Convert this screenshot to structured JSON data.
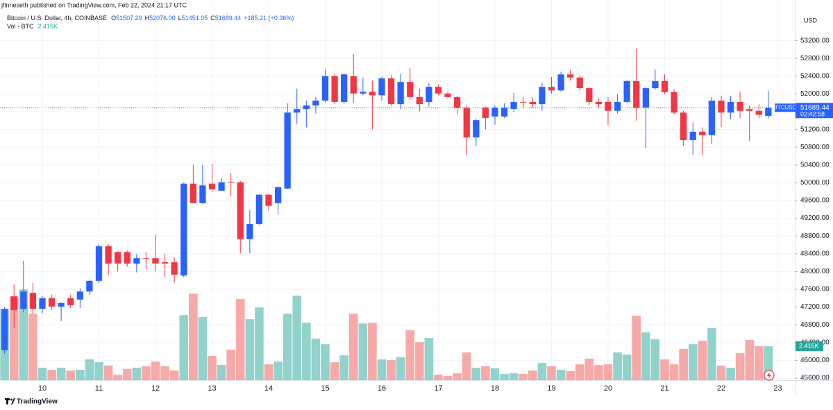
{
  "chart_data": {
    "type": "candlestick",
    "published": "jfinneseth published on TradingView.com, Feb 22, 2024 21:17 UTC",
    "legend": {
      "symbol": "Bitcoin / U.S. Dollar, 4h, COINBASE",
      "items": [
        {
          "key": "O",
          "value": "51507.29"
        },
        {
          "key": "H",
          "value": "52076.00"
        },
        {
          "key": "L",
          "value": "51451.05"
        },
        {
          "key": "C",
          "value": "51689.44"
        }
      ],
      "change": "+185.21 (+0.36%)"
    },
    "volume_legend": "Vol · BTC",
    "volume_label": "2.416K",
    "currency": "USD",
    "last_price": {
      "symbol": "BTCUSD",
      "value": 51689.44,
      "countdown": "02:42:58"
    },
    "brand": "TradingView",
    "up_color": "#2962ff",
    "down_color": "#f23645",
    "volume_up_color": "#92d2cc",
    "volume_down_color": "#f7a9a7",
    "grid": true,
    "x": [
      9.333,
      9.5,
      9.667,
      9.833,
      10,
      10.167,
      10.333,
      10.5,
      10.667,
      10.833,
      11,
      11.167,
      11.333,
      11.5,
      11.667,
      11.833,
      12,
      12.167,
      12.333,
      12.5,
      12.667,
      12.833,
      13,
      13.167,
      13.333,
      13.5,
      13.667,
      13.833,
      14,
      14.167,
      14.333,
      14.5,
      14.667,
      14.833,
      15,
      15.167,
      15.333,
      15.5,
      15.667,
      15.833,
      16,
      16.167,
      16.333,
      16.5,
      16.667,
      16.833,
      17,
      17.167,
      17.333,
      17.5,
      17.667,
      17.833,
      18,
      18.167,
      18.333,
      18.5,
      18.667,
      18.833,
      19,
      19.167,
      19.333,
      19.5,
      19.667,
      19.833,
      20,
      20.167,
      20.333,
      20.5,
      20.667,
      20.833,
      21,
      21.167,
      21.333,
      21.5,
      21.667,
      21.833,
      22,
      22.167,
      22.333,
      22.5,
      22.667,
      22.833
    ],
    "open": [
      46230,
      47440,
      47160,
      47520,
      47160,
      47400,
      47210,
      47400,
      47370,
      47550,
      47790,
      48570,
      48440,
      48440,
      48180,
      48300,
      48300,
      48210,
      48210,
      47910,
      49980,
      49540,
      49980,
      49820,
      50010,
      50010,
      48730,
      49070,
      49730,
      49540,
      49870,
      51580,
      51660,
      51740,
      51850,
      52400,
      51820,
      52400,
      52010,
      52050,
      51970,
      52350,
      51770,
      52270,
      51930,
      51820,
      52160,
      52010,
      51930,
      51690,
      51020,
      51690,
      51490,
      51490,
      51660,
      51820,
      51820,
      51770,
      52160,
      52080,
      52440,
      52370,
      52130,
      51820,
      51820,
      51620,
      51820,
      52290,
      51690,
      52130,
      52290,
      52040,
      51580,
      50960,
      51150,
      51070,
      51850,
      51580,
      51820,
      51660,
      51620,
      51507.29
    ],
    "high": [
      47200,
      47710,
      48240,
      47740,
      47450,
      47480,
      47310,
      47480,
      47620,
      47820,
      48620,
      48620,
      48460,
      48480,
      48390,
      48440,
      48830,
      48400,
      48320,
      50000,
      50410,
      50400,
      50430,
      50100,
      50220,
      50040,
      49380,
      49740,
      49760,
      49920,
      51790,
      52120,
      51850,
      51930,
      52550,
      52450,
      52470,
      52900,
      52370,
      52300,
      52380,
      52430,
      52450,
      52590,
      52120,
      52250,
      52220,
      52060,
      51960,
      51730,
      51440,
      51710,
      51740,
      51790,
      52020,
      51930,
      51930,
      52260,
      52380,
      52500,
      52540,
      52420,
      52160,
      51900,
      51930,
      52000,
      52320,
      53020,
      52160,
      52550,
      52440,
      52110,
      51620,
      51360,
      51250,
      51930,
      51960,
      51960,
      52050,
      51740,
      51770,
      52076
    ],
    "low": [
      46150,
      46730,
      47080,
      47050,
      47060,
      47130,
      46880,
      47180,
      47180,
      47480,
      47740,
      47930,
      48000,
      48110,
      47980,
      48050,
      48000,
      47870,
      47750,
      47870,
      49540,
      49520,
      49790,
      49820,
      49690,
      48410,
      48410,
      49050,
      49380,
      49280,
      49850,
      51330,
      51250,
      51560,
      51800,
      51770,
      51770,
      51800,
      51970,
      51200,
      51850,
      51730,
      51660,
      51880,
      51610,
      51720,
      51970,
      51900,
      51540,
      50630,
      50830,
      51200,
      51310,
      51460,
      51590,
      51670,
      51690,
      51620,
      52010,
      52050,
      52300,
      52070,
      51740,
      51680,
      51300,
      51560,
      51800,
      51400,
      50780,
      52100,
      52000,
      51540,
      50830,
      50630,
      50630,
      50870,
      51250,
      51430,
      51460,
      50940,
      51460,
      51451.05
    ],
    "close": [
      47160,
      47130,
      47550,
      47160,
      47400,
      47210,
      47290,
      47240,
      47550,
      47790,
      48570,
      48180,
      48180,
      48180,
      48300,
      48300,
      48180,
      48180,
      47930,
      49980,
      49540,
      49940,
      49850,
      50010,
      50010,
      48730,
      49070,
      49730,
      49480,
      49900,
      51580,
      51660,
      51740,
      51850,
      52400,
      51820,
      52440,
      52010,
      52050,
      51970,
      52350,
      51770,
      52270,
      51930,
      51770,
      52160,
      52010,
      51930,
      51690,
      51020,
      51410,
      51460,
      51690,
      51690,
      51820,
      51820,
      51770,
      52160,
      52080,
      52440,
      52370,
      52130,
      51820,
      51770,
      51620,
      51820,
      52290,
      51690,
      52130,
      52290,
      52040,
      51580,
      50960,
      51150,
      51070,
      51850,
      51580,
      51820,
      51620,
      51620,
      51530,
      51689.44
    ],
    "volume": [
      5080,
      5970,
      6460,
      4730,
      890,
      740,
      890,
      690,
      740,
      1480,
      1280,
      1040,
      390,
      790,
      890,
      990,
      1330,
      990,
      690,
      4630,
      6160,
      4490,
      1730,
      1080,
      2170,
      5770,
      4340,
      5180,
      1130,
      1330,
      4730,
      6010,
      4090,
      2960,
      2560,
      1280,
      1770,
      4730,
      4040,
      4090,
      1480,
      1430,
      1630,
      3550,
      2710,
      3010,
      390,
      300,
      490,
      1970,
      890,
      990,
      840,
      440,
      490,
      440,
      690,
      1230,
      990,
      740,
      640,
      1130,
      1530,
      1080,
      1130,
      1970,
      1820,
      4590,
      3400,
      2910,
      1480,
      1130,
      2220,
      2560,
      2810,
      3700,
      1040,
      890,
      1920,
      2860,
      2420,
      2416
    ],
    "xlim": [
      9.2515,
      23.301
    ],
    "xticks": [
      10,
      11,
      12,
      13,
      14,
      15,
      16,
      17,
      18,
      19,
      20,
      21,
      22,
      23
    ],
    "ylim": [
      45553,
      54116
    ],
    "yticks": [
      {
        "value": 45600,
        "label": "45600.00"
      },
      {
        "value": 46000,
        "label": "46000.00"
      },
      {
        "value": 46400,
        "label": "46400.00"
      },
      {
        "value": 46800,
        "label": "46800.00"
      },
      {
        "value": 47200,
        "label": "47200.00"
      },
      {
        "value": 47600,
        "label": "47600.00"
      },
      {
        "value": 48000,
        "label": "48000.00"
      },
      {
        "value": 48400,
        "label": "48400.00"
      },
      {
        "value": 48800,
        "label": "48800.00"
      },
      {
        "value": 49200,
        "label": "49200.00"
      },
      {
        "value": 49600,
        "label": "49600.00"
      },
      {
        "value": 50000,
        "label": "50000.00"
      },
      {
        "value": 50400,
        "label": "50400.00"
      },
      {
        "value": 50800,
        "label": "50800.00"
      },
      {
        "value": 51200,
        "label": "51200.00"
      },
      {
        "value": 51600,
        "label": "51600.00"
      },
      {
        "value": 52000,
        "label": "52000.00"
      },
      {
        "value": 52400,
        "label": "52400.00"
      },
      {
        "value": 52800,
        "label": "52800.00"
      },
      {
        "value": 53200,
        "label": "53200.00"
      }
    ],
    "volume_ylim": [
      0,
      12000
    ]
  }
}
